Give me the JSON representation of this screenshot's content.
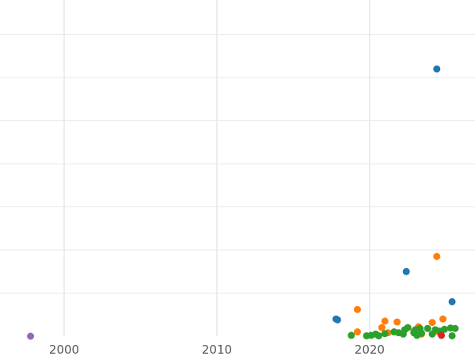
{
  "chart_data": {
    "type": "scatter",
    "title": "",
    "xlabel": "",
    "ylabel": "",
    "grid": true,
    "legend": "none",
    "xlim": [
      1995.8,
      2026.9
    ],
    "ylim": [
      0,
      7.8
    ],
    "xticks": [
      2000,
      2010,
      2020
    ],
    "xtick_labels": [
      "2000",
      "2010",
      "2020"
    ],
    "yticks": [
      1,
      2,
      3,
      4,
      5,
      6,
      7
    ],
    "grid_color": "#e8e8e8",
    "series": [
      {
        "color": "#1f77b4",
        "points": [
          {
            "x": 2024.4,
            "y": 6.2
          },
          {
            "x": 2022.4,
            "y": 1.5
          },
          {
            "x": 2025.4,
            "y": 0.8
          },
          {
            "x": 2017.8,
            "y": 0.4
          },
          {
            "x": 2017.9,
            "y": 0.38
          }
        ]
      },
      {
        "color": "#ff7f0e",
        "points": [
          {
            "x": 2024.4,
            "y": 1.85
          },
          {
            "x": 2019.2,
            "y": 0.62
          },
          {
            "x": 2021.0,
            "y": 0.35
          },
          {
            "x": 2021.8,
            "y": 0.33
          },
          {
            "x": 2024.8,
            "y": 0.4
          },
          {
            "x": 2024.1,
            "y": 0.32
          },
          {
            "x": 2020.8,
            "y": 0.2
          },
          {
            "x": 2023.2,
            "y": 0.22
          },
          {
            "x": 2019.2,
            "y": 0.1
          },
          {
            "x": 2021.2,
            "y": 0.08
          },
          {
            "x": 2022.9,
            "y": 0.12
          },
          {
            "x": 2024.5,
            "y": 0.1
          },
          {
            "x": 2023.4,
            "y": 0.05
          }
        ]
      },
      {
        "color": "#2ca02c",
        "points": [
          {
            "x": 2018.8,
            "y": 0.02
          },
          {
            "x": 2019.8,
            "y": 0.01
          },
          {
            "x": 2020.1,
            "y": 0.02
          },
          {
            "x": 2020.4,
            "y": 0.05
          },
          {
            "x": 2020.6,
            "y": 0.01
          },
          {
            "x": 2021.0,
            "y": 0.06
          },
          {
            "x": 2021.6,
            "y": 0.1
          },
          {
            "x": 2021.9,
            "y": 0.08
          },
          {
            "x": 2022.2,
            "y": 0.05
          },
          {
            "x": 2022.3,
            "y": 0.15
          },
          {
            "x": 2022.5,
            "y": 0.2
          },
          {
            "x": 2022.9,
            "y": 0.08
          },
          {
            "x": 2023.0,
            "y": 0.15
          },
          {
            "x": 2023.1,
            "y": 0.02
          },
          {
            "x": 2023.3,
            "y": 0.18
          },
          {
            "x": 2023.4,
            "y": 0.07
          },
          {
            "x": 2023.8,
            "y": 0.18
          },
          {
            "x": 2024.1,
            "y": 0.05
          },
          {
            "x": 2024.3,
            "y": 0.15
          },
          {
            "x": 2024.6,
            "y": 0.12
          },
          {
            "x": 2024.9,
            "y": 0.16
          },
          {
            "x": 2025.3,
            "y": 0.19
          },
          {
            "x": 2025.4,
            "y": 0.01
          },
          {
            "x": 2025.6,
            "y": 0.18
          }
        ]
      },
      {
        "color": "#d62728",
        "points": [
          {
            "x": 2024.7,
            "y": 0.02
          }
        ]
      },
      {
        "color": "#9467bd",
        "points": [
          {
            "x": 1997.8,
            "y": 0.0
          }
        ]
      }
    ]
  }
}
